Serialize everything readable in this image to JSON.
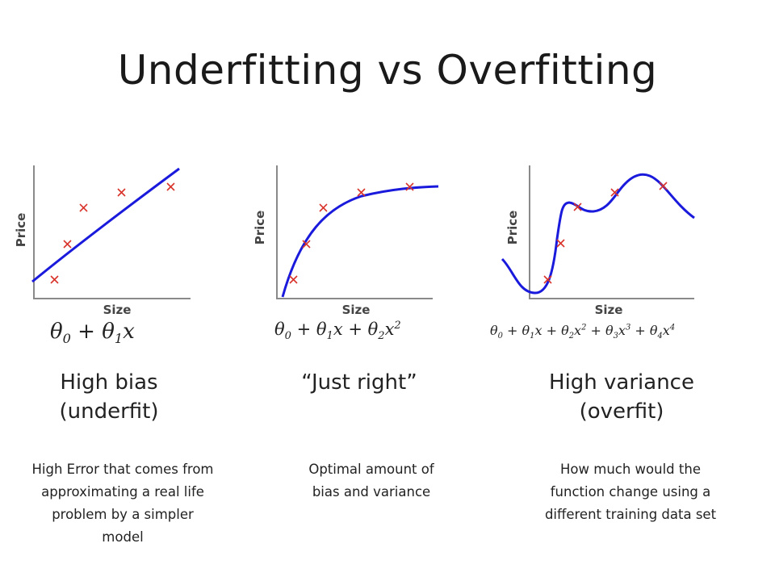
{
  "title": "Underfitting vs Overfitting",
  "axes": {
    "x_label": "Size",
    "y_label": "Price"
  },
  "panels": [
    {
      "formula": {
        "t0": "θ",
        "s0": "0",
        "op1": " + ",
        "t1": "θ",
        "s1": "1",
        "v1": "x"
      },
      "heading_line1": "High bias",
      "heading_line2": "(underfit)",
      "description": "High Error that comes from approximating a real life problem by a simpler model"
    },
    {
      "formula": {
        "t0": "θ",
        "s0": "0",
        "op1": " + ",
        "t1": "θ",
        "s1": "1",
        "v1": "x",
        "op2": " + ",
        "t2": "θ",
        "s2": "2",
        "v2": "x",
        "p2": "2"
      },
      "heading_line1": "“Just right”",
      "heading_line2": "",
      "description": "Optimal amount of bias and variance"
    },
    {
      "formula": {
        "t0": "θ",
        "s0": "0",
        "op1": " + ",
        "t1": "θ",
        "s1": "1",
        "v1": "x",
        "op2": " + ",
        "t2": "θ",
        "s2": "2",
        "v2": "x",
        "p2": "2",
        "op3": " + ",
        "t3": "θ",
        "s3": "3",
        "v3": "x",
        "p3": "3",
        "op4": " + ",
        "t4": "θ",
        "s4": "4",
        "v4": "x",
        "p4": "4"
      },
      "heading_line1": "High variance",
      "heading_line2": "(overfit)",
      "description": "How much would the function change using a different training data set"
    }
  ],
  "colors": {
    "curve": "#1a1adc",
    "marker": "#d9342b",
    "axis": "#8a8a8a"
  }
}
